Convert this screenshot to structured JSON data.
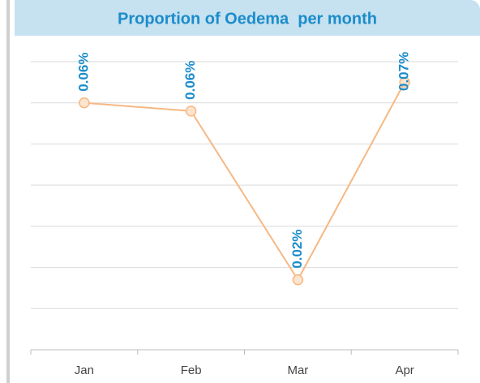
{
  "chart_data": {
    "type": "line",
    "title": "Proportion of Oedema  per month",
    "categories": [
      "Jan",
      "Feb",
      "Mar",
      "Apr"
    ],
    "series": [
      {
        "name": "Oedema",
        "color": "#f6b883",
        "values": [
          0.06,
          0.058,
          0.017,
          0.065
        ],
        "value_labels": [
          "0.06%",
          "0.06%",
          "0.02%",
          "0.07%"
        ]
      }
    ],
    "ylim": [
      0,
      0.07
    ],
    "yticks": [
      0,
      0.01,
      0.02,
      0.03,
      0.04,
      0.05,
      0.06,
      0.07
    ],
    "grid": true
  }
}
